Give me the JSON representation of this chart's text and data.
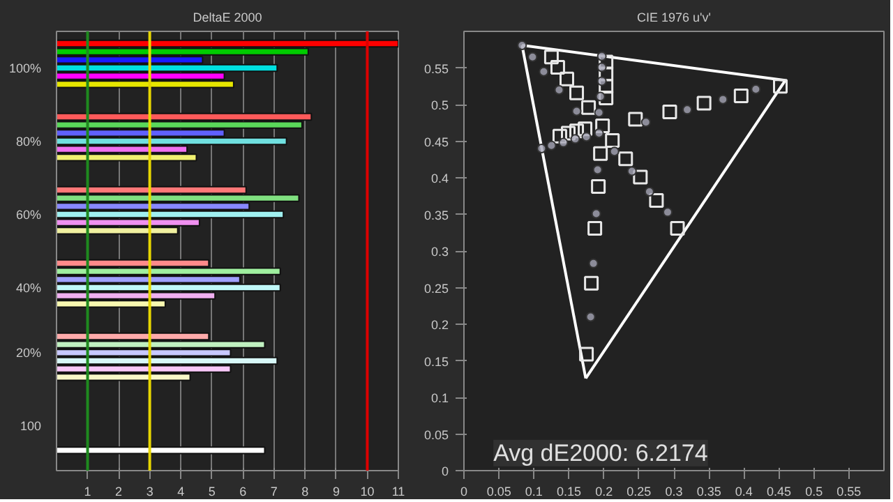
{
  "chart_data": [
    {
      "type": "bar",
      "orientation": "horizontal",
      "title": "DeltaE 2000",
      "categories": [
        null,
        null,
        null,
        null,
        "100%",
        null,
        null,
        null,
        null,
        null,
        null,
        null,
        null,
        "80%",
        null,
        null,
        null,
        null,
        null,
        null,
        null,
        null,
        "60%",
        null,
        null,
        null,
        null,
        null,
        null,
        null,
        null,
        "40%",
        null,
        null,
        null,
        null,
        null,
        null,
        null,
        "20%",
        null,
        null,
        null,
        null,
        null,
        null,
        null,
        null,
        "100",
        null,
        null,
        null,
        null,
        null
      ],
      "values": [
        null,
        11,
        8.1,
        4.7,
        7.1,
        5.4,
        5.7,
        null,
        null,
        null,
        8.2,
        7.9,
        5.4,
        7.4,
        4.2,
        4.5,
        null,
        null,
        null,
        6.1,
        7.8,
        6.2,
        7.3,
        4.6,
        3.9,
        null,
        null,
        null,
        4.9,
        7.2,
        5.9,
        7.2,
        5.1,
        3.5,
        null,
        null,
        null,
        4.9,
        6.7,
        5.6,
        7.1,
        5.6,
        4.3,
        null,
        null,
        null,
        null,
        null,
        null,
        null,
        null,
        6.7,
        null,
        null
      ],
      "colors": [
        null,
        "#ff0000",
        "#00cc00",
        "#1a1aff",
        "#00e0e0",
        "#ff00ff",
        "#e6e600",
        null,
        null,
        null,
        "#ff5a5a",
        "#5ad85a",
        "#6060ff",
        "#70e0e0",
        "#f070f0",
        "#f0f070",
        null,
        null,
        null,
        "#ff7878",
        "#80e080",
        "#8888ff",
        "#a0f0f0",
        "#f090f0",
        "#f0f0a0",
        null,
        null,
        null,
        "#ff8a8a",
        "#a0f0a0",
        "#a0a0ff",
        "#c0f8f8",
        "#f0b0f0",
        "#f8f8b0",
        null,
        null,
        null,
        "#ffaaaa",
        "#c0f0c0",
        "#c8c8ff",
        "#d8f8f8",
        "#f8c8f8",
        "#f8f8c8",
        null,
        null,
        null,
        null,
        null,
        null,
        null,
        null,
        "#ffffff",
        null,
        null
      ],
      "xlim": [
        0,
        11
      ],
      "xticks": [
        1,
        2,
        3,
        4,
        5,
        6,
        7,
        8,
        9,
        10,
        11
      ],
      "grid": "x",
      "ref_lines": [
        {
          "axis": "x",
          "value": 1,
          "color": "#1f8a1f"
        },
        {
          "axis": "x",
          "value": 3,
          "color": "#e6d600"
        },
        {
          "axis": "x",
          "value": 10,
          "color": "#dd0000"
        }
      ]
    },
    {
      "type": "scatter",
      "title": "CIE 1976 u'v'",
      "xlim": [
        0,
        0.6
      ],
      "ylim": [
        0,
        0.6
      ],
      "xticks": [
        0,
        0.05,
        0.1,
        0.15,
        0.2,
        0.25,
        0.3,
        0.35,
        0.4,
        0.45,
        0.5,
        0.55
      ],
      "yticks": [
        0,
        0.05,
        0.1,
        0.15,
        0.2,
        0.25,
        0.3,
        0.35,
        0.4,
        0.45,
        0.5,
        0.55
      ],
      "series": [
        {
          "type": "line",
          "color": "#ffffff",
          "marker": "none",
          "x": [
            0.083,
            0.459
          ],
          "values": [
            0.581,
            0.533
          ]
        },
        {
          "type": "line",
          "color": "#ffffff",
          "marker": "none",
          "x": [
            0.174,
            0.459
          ],
          "values": [
            0.126,
            0.533
          ]
        },
        {
          "type": "line",
          "color": "#ffffff",
          "marker": "none",
          "x": [
            0.083,
            0.174
          ],
          "values": [
            0.581,
            0.126
          ]
        },
        {
          "type": "scatter",
          "color": "#e8e8e8",
          "marker": "square",
          "x": [
            0.125,
            0.134,
            0.147,
            0.161,
            0.178,
            0.137,
            0.149,
            0.161,
            0.173,
            0.198,
            0.203,
            0.203,
            0.203,
            0.203,
            0.245,
            0.294,
            0.343,
            0.396,
            0.452,
            0.212,
            0.231,
            0.252,
            0.275,
            0.305,
            0.195,
            0.192,
            0.187,
            0.182,
            0.175
          ],
          "values": [
            0.565,
            0.551,
            0.535,
            0.516,
            0.496,
            0.457,
            0.461,
            0.464,
            0.467,
            0.471,
            0.558,
            0.542,
            0.525,
            0.509,
            0.48,
            0.49,
            0.502,
            0.512,
            0.525,
            0.451,
            0.426,
            0.401,
            0.369,
            0.331,
            0.433,
            0.388,
            0.331,
            0.256,
            0.159
          ]
        },
        {
          "type": "scatter",
          "color": "#a8a8b8",
          "marker": "circle",
          "x": [
            0.083,
            0.098,
            0.114,
            0.136,
            0.161,
            0.111,
            0.125,
            0.142,
            0.159,
            0.175,
            0.193,
            0.197,
            0.197,
            0.197,
            0.195,
            0.193,
            0.26,
            0.319,
            0.37,
            0.417,
            0.215,
            0.24,
            0.265,
            0.291,
            0.191,
            0.189,
            0.185,
            0.181
          ],
          "values": [
            0.581,
            0.565,
            0.545,
            0.52,
            0.491,
            0.44,
            0.444,
            0.448,
            0.453,
            0.456,
            0.461,
            0.566,
            0.551,
            0.532,
            0.511,
            0.489,
            0.476,
            0.493,
            0.507,
            0.521,
            0.436,
            0.409,
            0.381,
            0.353,
            0.411,
            0.351,
            0.283,
            0.21
          ]
        }
      ],
      "grid": false,
      "annotations": [
        "Avg dE2000: 6.2174"
      ]
    }
  ]
}
